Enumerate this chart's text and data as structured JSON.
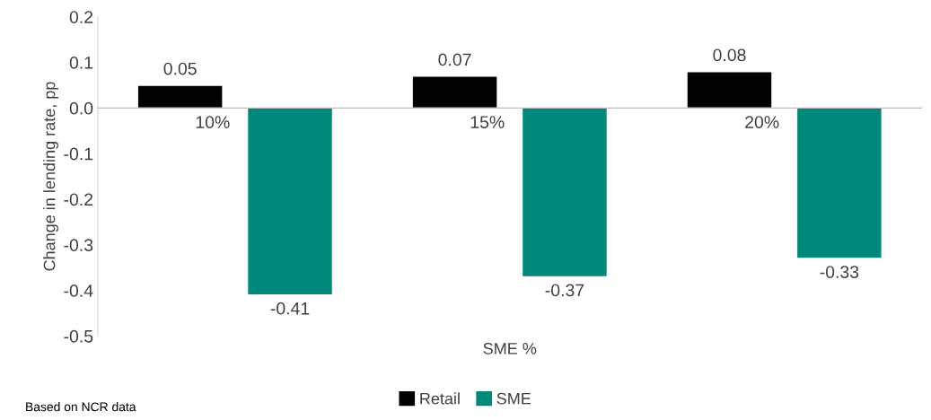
{
  "chart_data": {
    "type": "bar",
    "ylabel": "Change in lending rate, pp",
    "xlabel": "SME %",
    "categories": [
      "10%",
      "15%",
      "20%"
    ],
    "series": [
      {
        "name": "Retail",
        "color": "#000000",
        "values": [
          0.05,
          0.07,
          0.08
        ]
      },
      {
        "name": "SME",
        "color": "#00897b",
        "values": [
          -0.41,
          -0.37,
          -0.33
        ]
      }
    ],
    "ylim": [
      -0.5,
      0.2
    ],
    "yticks": [
      {
        "value": -0.5,
        "label": "-0.5"
      },
      {
        "value": -0.4,
        "label": "-0.4"
      },
      {
        "value": -0.3,
        "label": "-0.3"
      },
      {
        "value": -0.2,
        "label": "-0.2"
      },
      {
        "value": -0.1,
        "label": "-0.1"
      },
      {
        "value": 0,
        "label": "0.0"
      },
      {
        "value": 0.1,
        "label": "0.1"
      },
      {
        "value": 0.2,
        "label": "0.2"
      }
    ],
    "data_labels": true,
    "grid": false,
    "legend": "bottom",
    "annotations": [
      "Based on NCR data"
    ]
  }
}
